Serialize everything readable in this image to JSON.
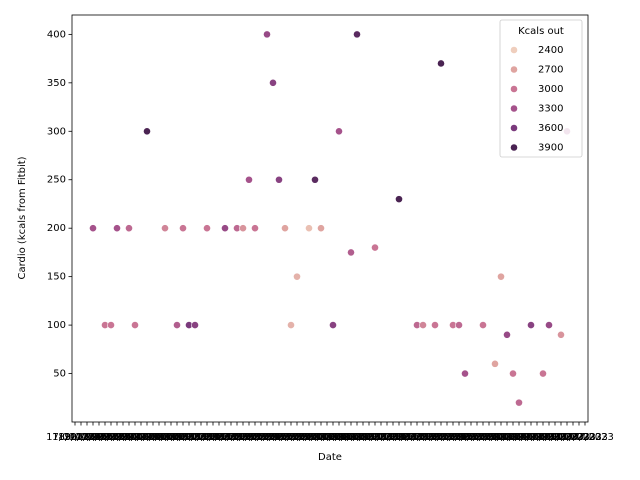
{
  "chart_data": {
    "type": "scatter",
    "x_label": "Date",
    "y_label": "Cardio (kcals from Fitbit)",
    "categories": [
      "17/04/2023",
      "18/04/2023",
      "19/04/2023",
      "20/04/2023",
      "21/04/2023",
      "22/04/2023",
      "23/04/2023",
      "24/04/2023",
      "25/04/2023",
      "26/04/2023",
      "27/04/2023",
      "28/04/2023",
      "29/04/2023",
      "30/04/2023",
      "01/05/2023",
      "02/05/2023",
      "03/05/2023",
      "04/05/2023",
      "05/05/2023",
      "06/05/2023",
      "07/05/2023",
      "08/05/2023",
      "09/05/2023",
      "10/05/2023",
      "11/05/2023",
      "12/05/2023",
      "13/05/2023",
      "14/05/2023",
      "15/05/2023",
      "16/05/2023",
      "17/05/2023",
      "18/05/2023",
      "19/05/2023",
      "20/05/2023",
      "21/05/2023",
      "22/05/2023",
      "23/05/2023",
      "24/05/2023",
      "25/05/2023",
      "26/05/2023",
      "27/05/2023",
      "28/05/2023",
      "29/05/2023",
      "30/05/2023",
      "31/05/2023",
      "01/06/2023",
      "02/06/2023",
      "03/06/2023",
      "04/06/2023",
      "05/06/2023",
      "06/06/2023",
      "07/06/2023",
      "08/06/2023",
      "09/06/2023",
      "10/06/2023",
      "11/06/2023",
      "12/06/2023",
      "13/06/2023",
      "14/06/2023",
      "15/06/2023",
      "16/06/2023",
      "17/06/2023",
      "18/06/2023",
      "19/06/2023",
      "20/06/2023",
      "21/06/2023",
      "22/06/2023",
      "23/06/2023",
      "24/06/2023",
      "25/06/2023",
      "26/06/2023",
      "27/06/2023",
      "28/06/2023",
      "29/06/2023",
      "30/06/2023",
      "01/07/2023",
      "02/07/2023",
      "03/07/2023",
      "04/07/2023",
      "05/07/2023",
      "06/07/2023",
      "07/07/2023",
      "08/07/2023",
      "09/07/2023",
      "10/07/2023",
      "11/07/2023"
    ],
    "values": [
      null,
      null,
      null,
      200,
      null,
      100,
      100,
      200,
      null,
      200,
      100,
      null,
      300,
      null,
      null,
      200,
      null,
      100,
      200,
      100,
      100,
      null,
      200,
      null,
      null,
      200,
      null,
      200,
      200,
      250,
      200,
      null,
      400,
      350,
      250,
      200,
      100,
      150,
      null,
      200,
      250,
      200,
      null,
      100,
      300,
      null,
      175,
      400,
      null,
      null,
      180,
      null,
      null,
      null,
      230,
      null,
      null,
      100,
      100,
      null,
      100,
      370,
      null,
      100,
      100,
      50,
      null,
      null,
      100,
      null,
      60,
      150,
      90,
      50,
      20,
      null,
      100,
      null,
      50,
      100,
      null,
      90,
      300,
      null,
      null,
      null
    ],
    "hue_values": [
      null,
      null,
      null,
      3300,
      null,
      3000,
      3000,
      3300,
      null,
      3100,
      3000,
      null,
      3900,
      null,
      null,
      2900,
      null,
      3200,
      3000,
      3600,
      3500,
      null,
      3000,
      null,
      null,
      3400,
      null,
      3100,
      2800,
      3300,
      3000,
      null,
      3400,
      3500,
      3500,
      2700,
      2600,
      2600,
      null,
      2500,
      3800,
      2700,
      null,
      3500,
      3300,
      null,
      3200,
      3800,
      null,
      null,
      3000,
      null,
      null,
      null,
      3900,
      null,
      null,
      3100,
      2900,
      null,
      3000,
      4000,
      null,
      3000,
      3100,
      3300,
      null,
      null,
      3000,
      null,
      2700,
      2700,
      3400,
      3000,
      3100,
      null,
      3500,
      null,
      3000,
      3400,
      null,
      2800,
      3300,
      null,
      null,
      null
    ],
    "ylim": [
      0,
      420
    ],
    "yticks": [
      50,
      100,
      150,
      200,
      250,
      300,
      350,
      400
    ],
    "legend": {
      "title": "Kcals out",
      "position": "upper right",
      "entries": [
        {
          "value": 2400,
          "color": "#efcebd"
        },
        {
          "value": 2700,
          "color": "#dfa4a0"
        },
        {
          "value": 3000,
          "color": "#c97594"
        },
        {
          "value": 3300,
          "color": "#a5528b"
        },
        {
          "value": 3600,
          "color": "#7a3a7c"
        },
        {
          "value": 3900,
          "color": "#4a2352"
        }
      ]
    }
  }
}
